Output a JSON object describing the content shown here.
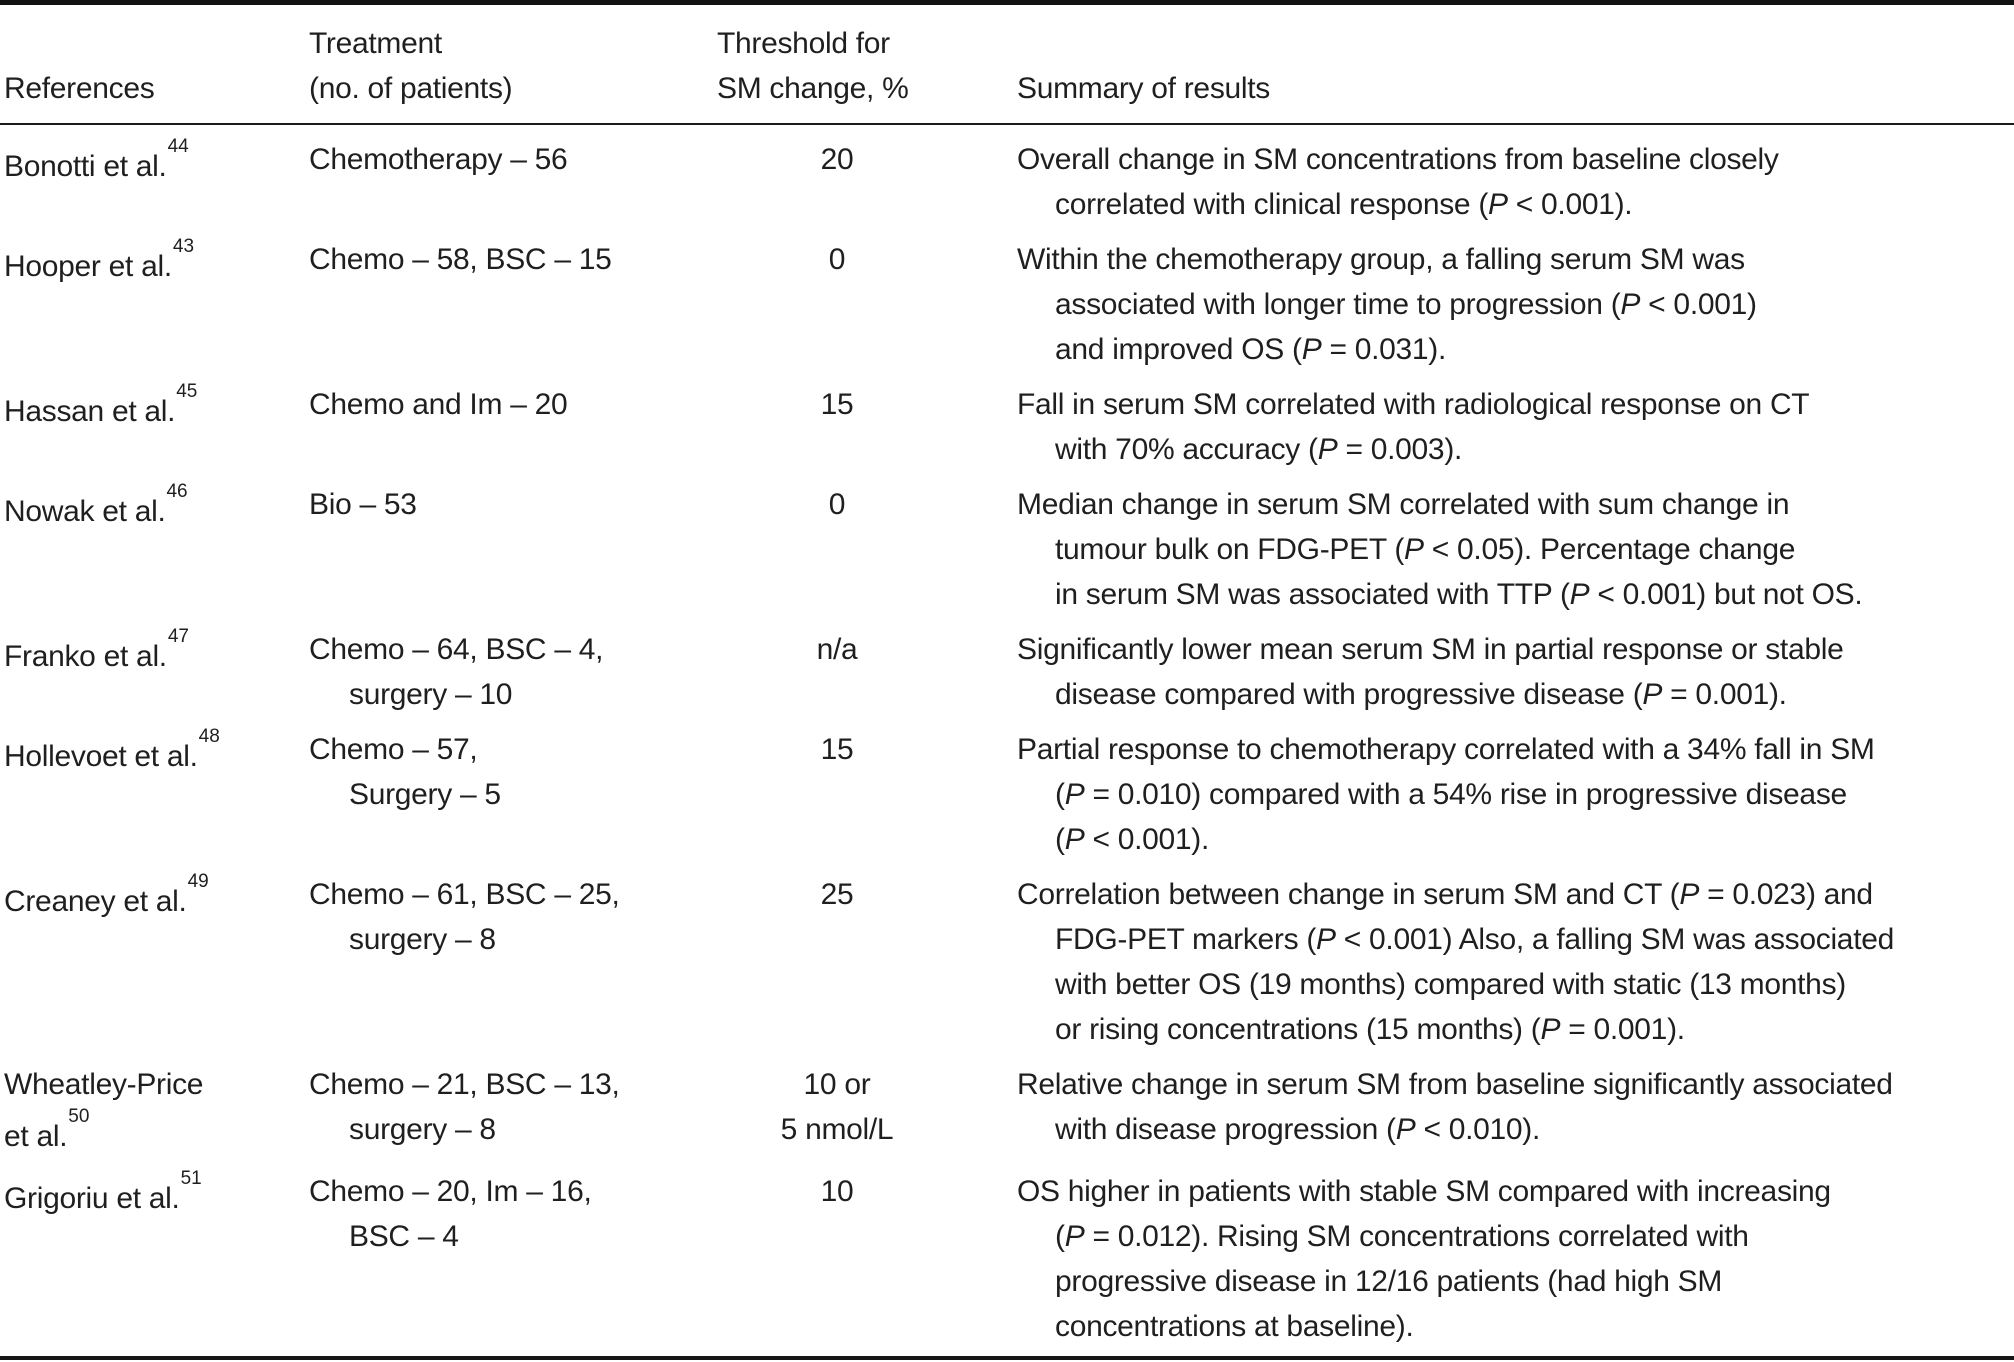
{
  "colors": {
    "text": "#1f1f1f",
    "rule": "#121212",
    "background": "#ffffff"
  },
  "table": {
    "headers": {
      "references": "References",
      "treatment_lines": [
        "Treatment",
        "(no. of patients)"
      ],
      "threshold_lines": [
        "Threshold for",
        "SM change, %"
      ],
      "summary": "Summary of results"
    },
    "rows": [
      {
        "ref_lines": [
          "Bonotti et al."
        ],
        "ref_sup": "44",
        "treatment_lines": [
          "Chemotherapy – 56"
        ],
        "threshold_lines": [
          "20"
        ],
        "summary_lines": [
          "Overall change in SM concentrations from baseline closely",
          "correlated with clinical response (P < 0.001)."
        ]
      },
      {
        "ref_lines": [
          "Hooper et al."
        ],
        "ref_sup": "43",
        "treatment_lines": [
          "Chemo – 58, BSC – 15"
        ],
        "threshold_lines": [
          "0"
        ],
        "summary_lines": [
          "Within the chemotherapy group, a falling serum SM was",
          "associated with longer time to progression (P < 0.001)",
          "and improved OS (P = 0.031)."
        ]
      },
      {
        "ref_lines": [
          "Hassan et al."
        ],
        "ref_sup": "45",
        "treatment_lines": [
          "Chemo and Im – 20"
        ],
        "threshold_lines": [
          "15"
        ],
        "summary_lines": [
          "Fall in serum SM correlated with radiological response on CT",
          "with 70% accuracy (P = 0.003)."
        ]
      },
      {
        "ref_lines": [
          "Nowak et al."
        ],
        "ref_sup": "46",
        "treatment_lines": [
          "Bio – 53"
        ],
        "threshold_lines": [
          "0"
        ],
        "summary_lines": [
          "Median change in serum SM correlated with sum change in",
          "tumour bulk on FDG-PET (P < 0.05). Percentage change",
          "in serum SM was associated with TTP (P < 0.001) but not OS."
        ]
      },
      {
        "ref_lines": [
          "Franko et al."
        ],
        "ref_sup": "47",
        "treatment_lines": [
          "Chemo – 64, BSC – 4,",
          "surgery – 10"
        ],
        "threshold_lines": [
          "n/a"
        ],
        "summary_lines": [
          "Significantly lower mean serum SM in partial response or stable",
          "disease compared with progressive disease (P = 0.001)."
        ]
      },
      {
        "ref_lines": [
          "Hollevoet et al."
        ],
        "ref_sup": "48",
        "treatment_lines": [
          "Chemo – 57,",
          "Surgery – 5"
        ],
        "threshold_lines": [
          "15"
        ],
        "summary_lines": [
          "Partial response to chemotherapy correlated with a 34% fall in SM",
          "(P = 0.010) compared with a 54% rise in progressive disease",
          "(P < 0.001)."
        ]
      },
      {
        "ref_lines": [
          "Creaney et al."
        ],
        "ref_sup": "49",
        "treatment_lines": [
          "Chemo – 61, BSC – 25,",
          "surgery – 8"
        ],
        "threshold_lines": [
          "25"
        ],
        "summary_lines": [
          "Correlation between change in serum SM and CT (P = 0.023) and",
          "FDG-PET markers (P < 0.001) Also, a falling SM was associated",
          "with better OS (19 months) compared with static (13 months)",
          "or rising concentrations (15 months) (P = 0.001)."
        ]
      },
      {
        "ref_lines": [
          "Wheatley-Price",
          "et al."
        ],
        "ref_sup": "50",
        "treatment_lines": [
          "Chemo – 21, BSC – 13,",
          "surgery – 8"
        ],
        "threshold_lines": [
          "10 or",
          "5 nmol/L"
        ],
        "summary_lines": [
          "Relative change in serum SM from baseline significantly associated",
          "with disease progression (P < 0.010)."
        ]
      },
      {
        "ref_lines": [
          "Grigoriu et al."
        ],
        "ref_sup": "51",
        "treatment_lines": [
          "Chemo – 20, Im – 16,",
          "BSC – 4"
        ],
        "threshold_lines": [
          "10"
        ],
        "summary_lines": [
          "OS higher in patients with stable SM compared with increasing",
          "(P = 0.012). Rising SM concentrations correlated with",
          "progressive disease in 12/16 patients (had high SM",
          "concentrations at baseline)."
        ]
      }
    ]
  }
}
